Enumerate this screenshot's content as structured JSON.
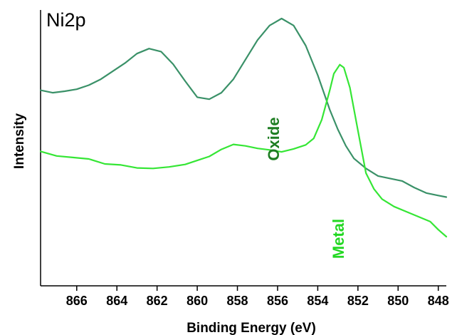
{
  "chart_data": {
    "type": "line",
    "title": "Ni2p",
    "xlabel": "Binding Energy (eV)",
    "ylabel": "Intensity",
    "xlim": [
      867.8,
      847.6
    ],
    "x_reversed": true,
    "ylim": [
      0,
      110
    ],
    "y_ticks_shown": false,
    "grid": false,
    "legend": "none",
    "x_ticks": [
      866,
      864,
      862,
      860,
      858,
      856,
      854,
      852,
      850,
      848
    ],
    "series": [
      {
        "name": "Oxide",
        "label_text": "Oxide",
        "color": "#3a9168",
        "label_color": "#1e7d22",
        "points": [
          [
            867.8,
            78.0
          ],
          [
            867.2,
            77.0
          ],
          [
            866.6,
            77.6
          ],
          [
            866.0,
            78.4
          ],
          [
            865.4,
            80.0
          ],
          [
            864.8,
            82.4
          ],
          [
            864.2,
            85.6
          ],
          [
            863.6,
            88.8
          ],
          [
            863.0,
            92.6
          ],
          [
            862.4,
            94.6
          ],
          [
            861.8,
            93.4
          ],
          [
            861.2,
            88.4
          ],
          [
            860.6,
            81.6
          ],
          [
            860.0,
            75.2
          ],
          [
            859.4,
            74.4
          ],
          [
            858.8,
            77.0
          ],
          [
            858.2,
            82.4
          ],
          [
            857.6,
            90.2
          ],
          [
            857.0,
            98.0
          ],
          [
            856.4,
            103.8
          ],
          [
            855.8,
            106.6
          ],
          [
            855.2,
            103.8
          ],
          [
            854.6,
            95.8
          ],
          [
            854.0,
            84.0
          ],
          [
            853.4,
            70.2
          ],
          [
            853.0,
            62.4
          ],
          [
            852.6,
            55.8
          ],
          [
            852.2,
            50.8
          ],
          [
            851.6,
            46.8
          ],
          [
            851.0,
            43.8
          ],
          [
            850.4,
            42.8
          ],
          [
            849.8,
            41.8
          ],
          [
            849.2,
            39.2
          ],
          [
            848.6,
            37.0
          ],
          [
            848.0,
            36.0
          ],
          [
            847.6,
            35.4
          ]
        ]
      },
      {
        "name": "Metal",
        "label_text": "Metal",
        "color": "#35e635",
        "label_color": "#22d822",
        "points": [
          [
            867.8,
            53.6
          ],
          [
            867.0,
            51.8
          ],
          [
            866.2,
            51.2
          ],
          [
            865.4,
            50.6
          ],
          [
            864.6,
            48.6
          ],
          [
            863.8,
            48.2
          ],
          [
            863.0,
            47.0
          ],
          [
            862.2,
            46.8
          ],
          [
            861.4,
            47.4
          ],
          [
            860.6,
            48.4
          ],
          [
            860.0,
            50.0
          ],
          [
            859.4,
            51.6
          ],
          [
            858.8,
            54.4
          ],
          [
            858.2,
            56.4
          ],
          [
            857.6,
            55.8
          ],
          [
            857.0,
            54.8
          ],
          [
            856.4,
            54.2
          ],
          [
            855.8,
            53.4
          ],
          [
            855.2,
            54.6
          ],
          [
            854.6,
            56.2
          ],
          [
            854.2,
            58.8
          ],
          [
            853.8,
            66.2
          ],
          [
            853.4,
            78.0
          ],
          [
            853.2,
            84.6
          ],
          [
            852.9,
            88.2
          ],
          [
            852.7,
            87.0
          ],
          [
            852.4,
            79.0
          ],
          [
            852.0,
            62.0
          ],
          [
            851.6,
            45.0
          ],
          [
            851.2,
            38.6
          ],
          [
            850.8,
            34.6
          ],
          [
            850.2,
            31.6
          ],
          [
            849.6,
            29.6
          ],
          [
            849.0,
            27.6
          ],
          [
            848.4,
            25.6
          ],
          [
            848.0,
            22.4
          ],
          [
            847.6,
            19.6
          ]
        ]
      }
    ]
  }
}
